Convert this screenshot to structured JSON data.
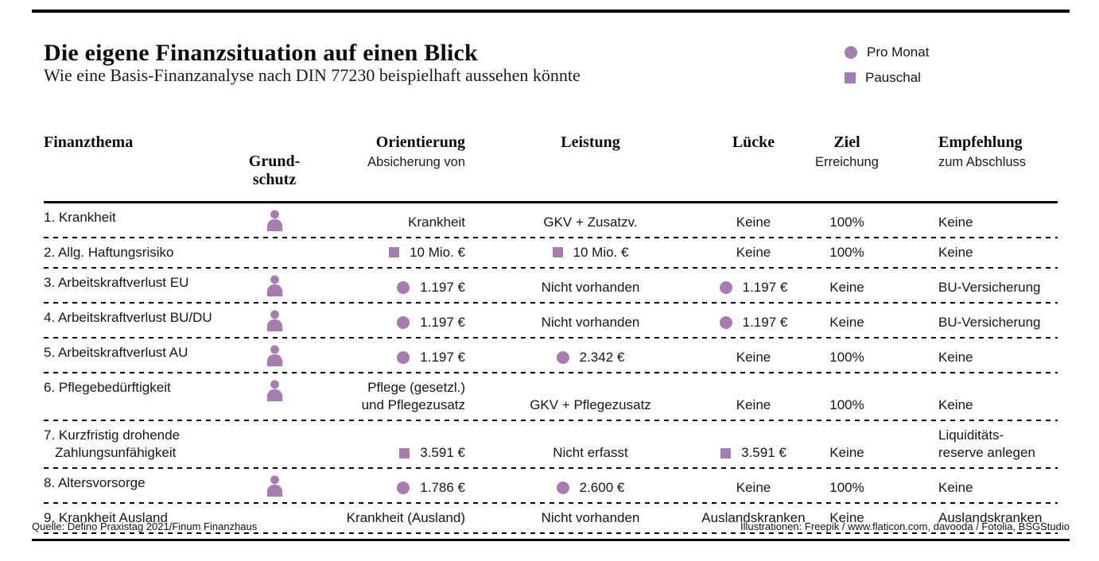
{
  "footer": {
    "source": "Quelle: Defino Praxistag 2021/Finum Finanzhaus",
    "credits": "Illustrationen: Freepik / www.flaticon.com, davooda / Fotolia, BSGStudio"
  },
  "chart_data": {
    "type": "table",
    "title": "Die eigene Finanzsituation auf einen Blick",
    "subtitle": "Wie eine Basis-Finanzanalyse nach DIN 77230 beispielhaft aussehen könnte",
    "marker_color": "#a77daf",
    "legend": [
      {
        "marker": "circle",
        "label": "Pro Monat"
      },
      {
        "marker": "square",
        "label": "Pauschal"
      }
    ],
    "columns": [
      {
        "label": "Finanzthema"
      },
      {
        "label": "Grund-\nschutz"
      },
      {
        "label": "Orientierung",
        "sublabel": "Absicherung von"
      },
      {
        "label": "Leistung"
      },
      {
        "label": "Lücke"
      },
      {
        "label": "Ziel",
        "sublabel": "Erreichung"
      },
      {
        "label": "Empfehlung",
        "sublabel": "zum Abschluss"
      }
    ],
    "rows": [
      {
        "thema": "1. Krankheit",
        "grundschutz": true,
        "orientierung": {
          "marker": null,
          "text": "Krankheit"
        },
        "leistung": {
          "marker": null,
          "text": "GKV + Zusatzv."
        },
        "luecke": {
          "marker": null,
          "text": "Keine"
        },
        "ziel": "100%",
        "empfehlung": "Keine"
      },
      {
        "thema": "2. Allg. Haftungsrisiko",
        "grundschutz": false,
        "orientierung": {
          "marker": "square",
          "text": "10 Mio. €"
        },
        "leistung": {
          "marker": "square",
          "text": "10 Mio. €"
        },
        "luecke": {
          "marker": null,
          "text": "Keine"
        },
        "ziel": "100%",
        "empfehlung": "Keine"
      },
      {
        "thema": "3. Arbeitskraftverlust EU",
        "grundschutz": true,
        "orientierung": {
          "marker": "circle",
          "text": "1.197 €"
        },
        "leistung": {
          "marker": null,
          "text": "Nicht vorhanden"
        },
        "luecke": {
          "marker": "circle",
          "text": "1.197 €"
        },
        "ziel": "Keine",
        "empfehlung": "BU-Versicherung"
      },
      {
        "thema": "4. Arbeitskraftverlust BU/DU",
        "grundschutz": true,
        "orientierung": {
          "marker": "circle",
          "text": "1.197 €"
        },
        "leistung": {
          "marker": null,
          "text": "Nicht vorhanden"
        },
        "luecke": {
          "marker": "circle",
          "text": "1.197 €"
        },
        "ziel": "Keine",
        "empfehlung": "BU-Versicherung"
      },
      {
        "thema": "5. Arbeitskraftverlust AU",
        "grundschutz": true,
        "orientierung": {
          "marker": "circle",
          "text": "1.197 €"
        },
        "leistung": {
          "marker": "circle",
          "text": "2.342 €"
        },
        "luecke": {
          "marker": null,
          "text": "Keine"
        },
        "ziel": "100%",
        "empfehlung": "Keine"
      },
      {
        "thema": "6. Pflegebedürftigkeit",
        "grundschutz": true,
        "orientierung": {
          "marker": null,
          "text": "Pflege (gesetzl.)\nund Pflegezusatz"
        },
        "leistung": {
          "marker": null,
          "text": "GKV + Pflegezusatz"
        },
        "luecke": {
          "marker": null,
          "text": "Keine"
        },
        "ziel": "100%",
        "empfehlung": "Keine"
      },
      {
        "thema": "7. Kurzfristig drohende\n   Zahlungsunfähigkeit",
        "grundschutz": false,
        "orientierung": {
          "marker": "square",
          "text": "3.591 €"
        },
        "leistung": {
          "marker": null,
          "text": "Nicht erfasst"
        },
        "luecke": {
          "marker": "square",
          "text": "3.591 €"
        },
        "ziel": "Keine",
        "empfehlung": "Liquiditäts-\nreserve anlegen"
      },
      {
        "thema": "8. Altersvorsorge",
        "grundschutz": true,
        "orientierung": {
          "marker": "circle",
          "text": "1.786 €"
        },
        "leistung": {
          "marker": "circle",
          "text": "2.600 €"
        },
        "luecke": {
          "marker": null,
          "text": "Keine"
        },
        "ziel": "100%",
        "empfehlung": "Keine"
      },
      {
        "thema": "9. Krankheit Ausland",
        "grundschutz": false,
        "orientierung": {
          "marker": null,
          "text": "Krankheit (Ausland)"
        },
        "leistung": {
          "marker": null,
          "text": "Nicht vorhanden"
        },
        "luecke": {
          "marker": null,
          "text": "Auslandskranken"
        },
        "ziel": "Keine",
        "empfehlung": "Auslandskranken"
      }
    ]
  }
}
